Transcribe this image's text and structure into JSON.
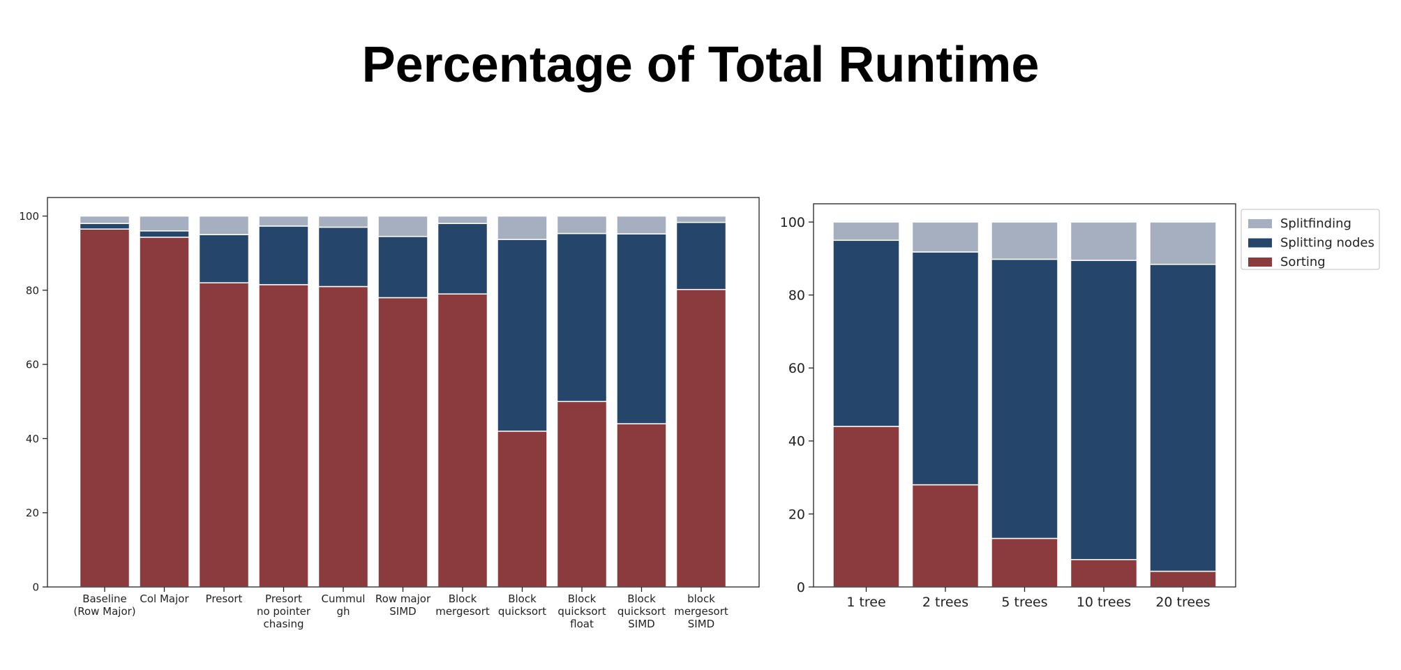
{
  "title": "Percentage of Total Runtime",
  "colors": {
    "Sorting": "#8B3A3E",
    "Splitting nodes": "#25456B",
    "Splitfinding": "#A6AFBF"
  },
  "chart_data": [
    {
      "type": "bar",
      "stacked": true,
      "title": "",
      "xlabel": "",
      "ylabel": "",
      "ylim": [
        0,
        105
      ],
      "yticks": [
        0,
        20,
        40,
        60,
        80,
        100
      ],
      "grid": false,
      "legend": "none",
      "categories": [
        "Baseline\n(Row Major)",
        "Col Major",
        "Presort",
        "Presort\nno pointer\nchasing",
        "Cummul\ngh",
        "Row major\nSIMD",
        "Block\nmergesort",
        "Block\nquicksort",
        "Block\nquicksort\nfloat",
        "Block\nquicksort\nSIMD",
        "block\nmergesort\nSIMD"
      ],
      "series": [
        {
          "name": "Sorting",
          "values": [
            96.5,
            94.3,
            82.0,
            81.5,
            81.0,
            78.0,
            79.0,
            42.0,
            50.0,
            44.0,
            80.2
          ]
        },
        {
          "name": "Splitting nodes",
          "values": [
            1.5,
            1.7,
            13.0,
            15.8,
            16.0,
            16.5,
            19.0,
            51.7,
            45.3,
            51.2,
            18.1
          ]
        },
        {
          "name": "Splitfinding",
          "values": [
            2.0,
            4.0,
            5.0,
            2.7,
            3.0,
            5.5,
            2.0,
            6.3,
            4.7,
            4.8,
            1.7
          ]
        }
      ]
    },
    {
      "type": "bar",
      "stacked": true,
      "title": "",
      "xlabel": "",
      "ylabel": "",
      "ylim": [
        0,
        105
      ],
      "yticks": [
        0,
        20,
        40,
        60,
        80,
        100
      ],
      "grid": false,
      "legend": "outside-top-right",
      "categories": [
        "1 tree",
        "2 trees",
        "5 trees",
        "10 trees",
        "20 trees"
      ],
      "series": [
        {
          "name": "Sorting",
          "values": [
            44.0,
            28.0,
            13.3,
            7.5,
            4.3
          ]
        },
        {
          "name": "Splitting nodes",
          "values": [
            51.0,
            63.8,
            76.5,
            82.0,
            84.1
          ]
        },
        {
          "name": "Splitfinding",
          "values": [
            5.0,
            8.2,
            10.2,
            10.5,
            11.6
          ]
        }
      ]
    }
  ]
}
